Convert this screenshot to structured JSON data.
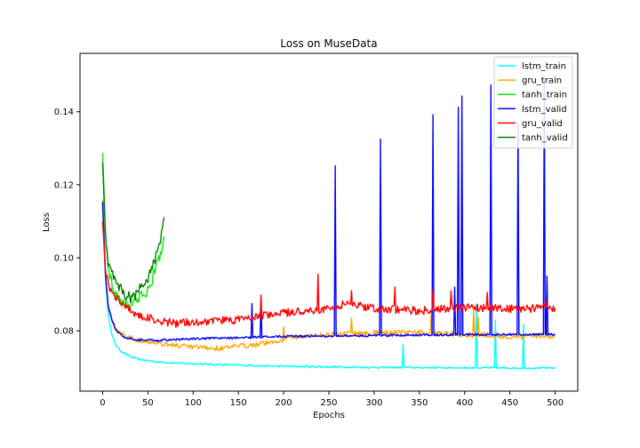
{
  "chart_data": {
    "type": "line",
    "title": "Loss on MuseData",
    "xlabel": "Epochs",
    "ylabel": "Loss",
    "xlim": [
      -25,
      525
    ],
    "ylim": [
      0.0635,
      0.156
    ],
    "xticks": [
      0,
      50,
      100,
      150,
      200,
      250,
      300,
      350,
      400,
      450,
      500
    ],
    "yticks": [
      0.08,
      0.1,
      0.12,
      0.14
    ],
    "ytick_labels": [
      "0.08",
      "0.10",
      "0.12",
      "0.14"
    ],
    "grid": false,
    "legend_position": "top-right",
    "series": [
      {
        "name": "lstm_train",
        "color": "#00ffff",
        "base": [
          [
            0,
            0.115
          ],
          [
            3,
            0.095
          ],
          [
            6,
            0.085
          ],
          [
            10,
            0.079
          ],
          [
            15,
            0.076
          ],
          [
            20,
            0.0745
          ],
          [
            30,
            0.073
          ],
          [
            40,
            0.0722
          ],
          [
            60,
            0.0715
          ],
          [
            80,
            0.0712
          ],
          [
            100,
            0.071
          ],
          [
            150,
            0.0706
          ],
          [
            200,
            0.0703
          ],
          [
            300,
            0.07
          ],
          [
            400,
            0.0699
          ],
          [
            500,
            0.0698
          ]
        ],
        "spikes": [
          [
            332,
            0.0763
          ],
          [
            413,
            0.0873
          ],
          [
            434,
            0.083
          ],
          [
            465,
            0.0818
          ]
        ],
        "noise": 0.00025,
        "length": 500
      },
      {
        "name": "gru_train",
        "color": "#ffa500",
        "base": [
          [
            0,
            0.116
          ],
          [
            3,
            0.097
          ],
          [
            6,
            0.088
          ],
          [
            10,
            0.083
          ],
          [
            15,
            0.0805
          ],
          [
            25,
            0.0785
          ],
          [
            40,
            0.0775
          ],
          [
            60,
            0.0768
          ],
          [
            80,
            0.076
          ],
          [
            100,
            0.0755
          ],
          [
            130,
            0.0752
          ],
          [
            150,
            0.0758
          ],
          [
            190,
            0.077
          ],
          [
            210,
            0.0783
          ],
          [
            250,
            0.079
          ],
          [
            300,
            0.0795
          ],
          [
            350,
            0.0795
          ],
          [
            400,
            0.079
          ],
          [
            450,
            0.0785
          ],
          [
            500,
            0.0785
          ]
        ],
        "spikes": [
          [
            200,
            0.0812
          ],
          [
            275,
            0.0835
          ],
          [
            363,
            0.0845
          ],
          [
            410,
            0.086
          ],
          [
            415,
            0.084
          ],
          [
            490,
            0.083
          ]
        ],
        "noise": 0.0007,
        "length": 500
      },
      {
        "name": "tanh_train",
        "color": "#00ee00",
        "base": [
          [
            0,
            0.1287
          ],
          [
            3,
            0.108
          ],
          [
            6,
            0.098
          ],
          [
            10,
            0.093
          ],
          [
            15,
            0.0895
          ],
          [
            20,
            0.088
          ],
          [
            30,
            0.087
          ],
          [
            40,
            0.089
          ],
          [
            48,
            0.0905
          ],
          [
            55,
            0.094
          ],
          [
            60,
            0.0985
          ],
          [
            65,
            0.102
          ],
          [
            68,
            0.1045
          ]
        ],
        "spikes": [],
        "noise": 0.0014,
        "length": 68
      },
      {
        "name": "lstm_valid",
        "color": "#0000ff",
        "base": [
          [
            0,
            0.1153
          ],
          [
            3,
            0.096
          ],
          [
            6,
            0.087
          ],
          [
            10,
            0.083
          ],
          [
            15,
            0.08
          ],
          [
            25,
            0.0782
          ],
          [
            40,
            0.0775
          ],
          [
            60,
            0.0774
          ],
          [
            100,
            0.0778
          ],
          [
            150,
            0.0781
          ],
          [
            200,
            0.0785
          ],
          [
            300,
            0.0787
          ],
          [
            400,
            0.079
          ],
          [
            500,
            0.079
          ]
        ],
        "spikes": [
          [
            165,
            0.0875
          ],
          [
            175,
            0.0892
          ],
          [
            257,
            0.1252
          ],
          [
            307,
            0.1325
          ],
          [
            365,
            0.1392
          ],
          [
            389,
            0.092
          ],
          [
            393,
            0.1413
          ],
          [
            397,
            0.1443
          ],
          [
            429,
            0.1473
          ],
          [
            459,
            0.137
          ],
          [
            488,
            0.1485
          ],
          [
            491,
            0.095
          ]
        ],
        "noise": 0.0003,
        "length": 500
      },
      {
        "name": "gru_valid",
        "color": "#ff0000",
        "base": [
          [
            0,
            0.11
          ],
          [
            3,
            0.097
          ],
          [
            6,
            0.093
          ],
          [
            10,
            0.0905
          ],
          [
            20,
            0.088
          ],
          [
            40,
            0.084
          ],
          [
            60,
            0.083
          ],
          [
            80,
            0.082
          ],
          [
            100,
            0.0825
          ],
          [
            150,
            0.083
          ],
          [
            200,
            0.085
          ],
          [
            250,
            0.086
          ],
          [
            270,
            0.0875
          ],
          [
            300,
            0.0862
          ],
          [
            350,
            0.0855
          ],
          [
            400,
            0.0865
          ],
          [
            450,
            0.086
          ],
          [
            500,
            0.0862
          ]
        ],
        "spikes": [
          [
            175,
            0.0898
          ],
          [
            238,
            0.0955
          ],
          [
            275,
            0.091
          ],
          [
            323,
            0.092
          ],
          [
            365,
            0.0912
          ],
          [
            385,
            0.091
          ],
          [
            425,
            0.0905
          ],
          [
            490,
            0.0885
          ]
        ],
        "noise": 0.0011,
        "length": 500
      },
      {
        "name": "tanh_valid",
        "color": "#008000",
        "base": [
          [
            0,
            0.126
          ],
          [
            3,
            0.107
          ],
          [
            6,
            0.099
          ],
          [
            10,
            0.096
          ],
          [
            15,
            0.093
          ],
          [
            20,
            0.0915
          ],
          [
            25,
            0.09
          ],
          [
            30,
            0.089
          ],
          [
            35,
            0.0895
          ],
          [
            40,
            0.091
          ],
          [
            48,
            0.0935
          ],
          [
            55,
            0.0975
          ],
          [
            60,
            0.101
          ],
          [
            65,
            0.106
          ],
          [
            68,
            0.11
          ]
        ],
        "spikes": [],
        "noise": 0.0016,
        "length": 68
      }
    ]
  }
}
